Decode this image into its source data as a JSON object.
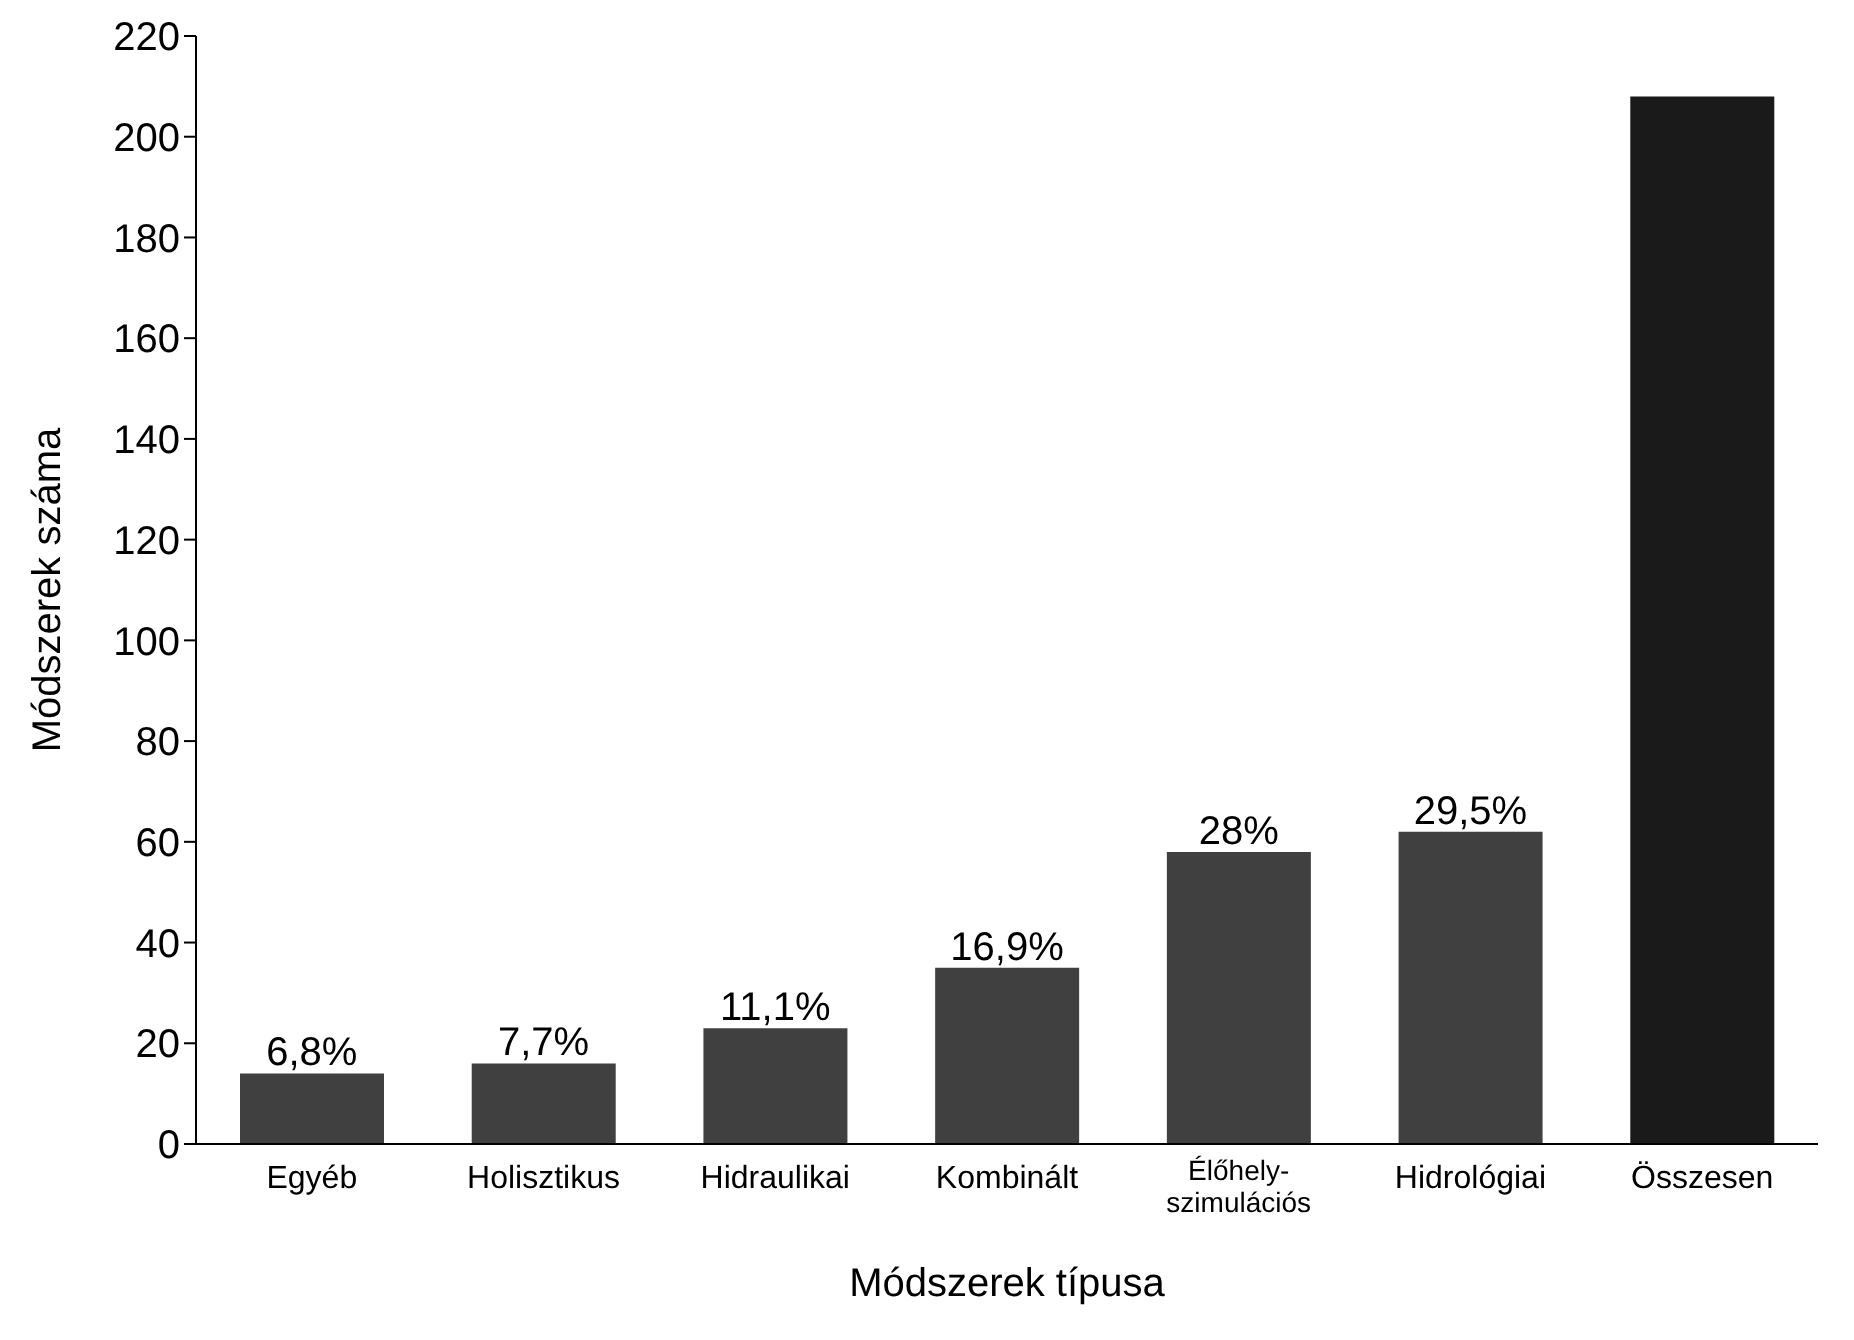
{
  "chart_data": {
    "type": "bar",
    "xlabel": "Módszerek típusa",
    "ylabel": "Módszerek száma",
    "categories": [
      "Egyéb",
      "Holisztikus",
      "Hidraulikai",
      "Kombinált",
      "Élőhely-\nszimulációs",
      "Hidrológiai",
      "Összesen"
    ],
    "values": [
      14,
      16,
      23,
      35,
      58,
      62,
      208
    ],
    "colors": [
      "#404040",
      "#404040",
      "#404040",
      "#404040",
      "#404040",
      "#404040",
      "#1a1a1a"
    ],
    "annotations": [
      {
        "text": "6,8%",
        "x": "Egyéb",
        "y": 14
      },
      {
        "text": "7,7%",
        "x": "Holisztikus",
        "y": 16
      },
      {
        "text": "11,1%",
        "x": "Hidraulikai",
        "y": 23
      },
      {
        "text": "16,9%",
        "x": "Kombinált",
        "y": 35
      },
      {
        "text": "28%",
        "x": "Élőhely-\nszimulációs",
        "y": 58
      },
      {
        "text": "29,5%",
        "x": "Hidrológiai",
        "y": 62
      }
    ],
    "ylim": [
      0,
      220
    ],
    "yticks": [
      0,
      20,
      40,
      60,
      80,
      100,
      120,
      140,
      160,
      180,
      200,
      220
    ],
    "grid": false,
    "legend": false
  }
}
